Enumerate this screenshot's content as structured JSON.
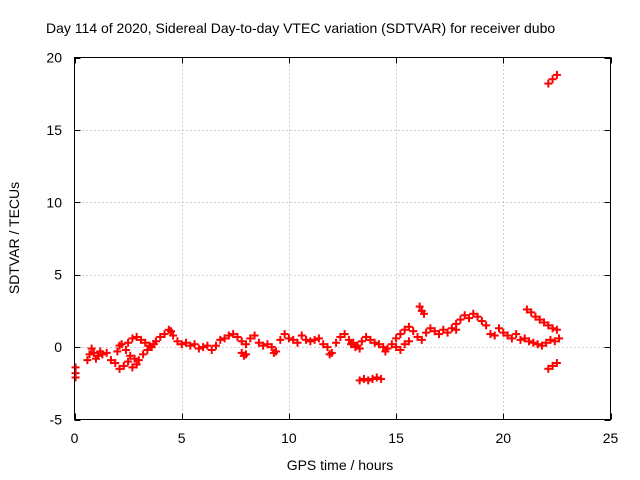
{
  "chart_data": {
    "type": "scatter",
    "title": "Day 114 of 2020, Sidereal Day-to-day VTEC variation (SDTVAR) for receiver dubo",
    "xlabel": "GPS time / hours",
    "ylabel": "SDTVAR / TECUs",
    "xlim": [
      0,
      25
    ],
    "ylim": [
      -5,
      20
    ],
    "xticks": [
      0,
      5,
      10,
      15,
      20,
      25
    ],
    "yticks": [
      -5,
      0,
      5,
      10,
      15,
      20
    ],
    "x_tick_labels": [
      "0",
      "5",
      "10",
      "15",
      "20",
      "25"
    ],
    "y_tick_labels": [
      "-5",
      "0",
      "5",
      "10",
      "15",
      "20"
    ],
    "grid": true,
    "marker": "plus",
    "color": "#ff0000",
    "series": [
      {
        "name": "SDTVAR",
        "points": [
          [
            0.05,
            -1.4
          ],
          [
            0.05,
            -1.8
          ],
          [
            0.05,
            -2.1
          ],
          [
            0.6,
            -0.9
          ],
          [
            0.7,
            -0.5
          ],
          [
            0.8,
            -0.1
          ],
          [
            0.9,
            -0.4
          ],
          [
            1.0,
            -0.8
          ],
          [
            1.1,
            -0.6
          ],
          [
            1.2,
            -0.3
          ],
          [
            1.3,
            -0.5
          ],
          [
            1.5,
            -0.4
          ],
          [
            1.7,
            -0.9
          ],
          [
            1.9,
            -1.1
          ],
          [
            2.1,
            -1.5
          ],
          [
            2.3,
            -1.3
          ],
          [
            2.5,
            -1.0
          ],
          [
            2.7,
            -1.4
          ],
          [
            2.9,
            -1.2
          ],
          [
            2.0,
            -0.3
          ],
          [
            2.1,
            0.1
          ],
          [
            2.2,
            0.2
          ],
          [
            2.4,
            -0.2
          ],
          [
            2.6,
            -0.6
          ],
          [
            2.8,
            -0.8
          ],
          [
            3.0,
            -0.9
          ],
          [
            3.2,
            -0.5
          ],
          [
            2.5,
            0.3
          ],
          [
            2.7,
            0.6
          ],
          [
            2.9,
            0.7
          ],
          [
            3.1,
            0.5
          ],
          [
            3.3,
            0.3
          ],
          [
            3.5,
            0.1
          ],
          [
            3.7,
            0.2
          ],
          [
            3.4,
            -0.2
          ],
          [
            3.6,
            0.0
          ],
          [
            3.8,
            0.4
          ],
          [
            4.0,
            0.7
          ],
          [
            4.2,
            0.9
          ],
          [
            4.4,
            1.2
          ],
          [
            4.5,
            1.1
          ],
          [
            4.6,
            0.8
          ],
          [
            4.8,
            0.4
          ],
          [
            5.0,
            0.2
          ],
          [
            5.2,
            0.3
          ],
          [
            5.4,
            0.1
          ],
          [
            5.6,
            0.2
          ],
          [
            5.8,
            -0.1
          ],
          [
            6.0,
            0.0
          ],
          [
            6.2,
            0.1
          ],
          [
            6.4,
            -0.2
          ],
          [
            6.6,
            0.1
          ],
          [
            6.8,
            0.5
          ],
          [
            7.0,
            0.6
          ],
          [
            7.2,
            0.8
          ],
          [
            7.4,
            0.9
          ],
          [
            7.6,
            0.7
          ],
          [
            7.8,
            0.4
          ],
          [
            8.0,
            0.2
          ],
          [
            8.2,
            0.6
          ],
          [
            8.4,
            0.8
          ],
          [
            7.8,
            -0.4
          ],
          [
            7.9,
            -0.6
          ],
          [
            8.0,
            -0.5
          ],
          [
            8.6,
            0.3
          ],
          [
            8.8,
            0.1
          ],
          [
            9.0,
            0.2
          ],
          [
            9.2,
            0.0
          ],
          [
            9.3,
            -0.4
          ],
          [
            9.4,
            -0.3
          ],
          [
            9.6,
            0.5
          ],
          [
            9.8,
            0.9
          ],
          [
            10.0,
            0.6
          ],
          [
            10.2,
            0.5
          ],
          [
            10.4,
            0.3
          ],
          [
            10.6,
            0.8
          ],
          [
            10.8,
            0.5
          ],
          [
            11.0,
            0.4
          ],
          [
            11.2,
            0.5
          ],
          [
            11.4,
            0.6
          ],
          [
            11.6,
            0.2
          ],
          [
            11.8,
            0.0
          ],
          [
            11.9,
            -0.5
          ],
          [
            12.0,
            -0.4
          ],
          [
            12.2,
            0.3
          ],
          [
            12.4,
            0.7
          ],
          [
            12.6,
            0.9
          ],
          [
            12.8,
            0.5
          ],
          [
            13.0,
            0.3
          ],
          [
            13.2,
            0.1
          ],
          [
            13.4,
            0.4
          ],
          [
            13.6,
            0.7
          ],
          [
            13.8,
            0.5
          ],
          [
            14.0,
            0.3
          ],
          [
            14.2,
            0.2
          ],
          [
            14.4,
            0.0
          ],
          [
            14.5,
            -0.3
          ],
          [
            12.9,
            0.2
          ],
          [
            13.1,
            0.0
          ],
          [
            13.3,
            -0.1
          ],
          [
            13.3,
            -2.3
          ],
          [
            13.5,
            -2.2
          ],
          [
            13.7,
            -2.3
          ],
          [
            13.9,
            -2.2
          ],
          [
            14.1,
            -2.1
          ],
          [
            14.3,
            -2.2
          ],
          [
            14.6,
            -0.1
          ],
          [
            14.8,
            0.2
          ],
          [
            15.0,
            0.6
          ],
          [
            15.2,
            0.9
          ],
          [
            15.4,
            1.2
          ],
          [
            15.6,
            1.4
          ],
          [
            15.8,
            1.1
          ],
          [
            16.0,
            0.7
          ],
          [
            16.2,
            0.5
          ],
          [
            15.0,
            0.0
          ],
          [
            15.2,
            -0.2
          ],
          [
            15.4,
            0.2
          ],
          [
            15.6,
            0.4
          ],
          [
            16.1,
            2.8
          ],
          [
            16.2,
            2.5
          ],
          [
            16.3,
            2.3
          ],
          [
            16.4,
            1.0
          ],
          [
            16.6,
            1.3
          ],
          [
            16.8,
            1.1
          ],
          [
            17.0,
            0.9
          ],
          [
            17.2,
            1.2
          ],
          [
            17.4,
            1.0
          ],
          [
            17.6,
            1.3
          ],
          [
            17.8,
            1.2
          ],
          [
            17.8,
            1.6
          ],
          [
            18.0,
            1.9
          ],
          [
            18.2,
            2.2
          ],
          [
            18.4,
            2.0
          ],
          [
            18.6,
            2.3
          ],
          [
            18.8,
            2.1
          ],
          [
            19.0,
            1.8
          ],
          [
            19.2,
            1.5
          ],
          [
            19.4,
            0.9
          ],
          [
            19.6,
            0.8
          ],
          [
            19.8,
            1.3
          ],
          [
            20.0,
            1.0
          ],
          [
            20.2,
            0.8
          ],
          [
            20.4,
            0.6
          ],
          [
            20.6,
            0.9
          ],
          [
            20.8,
            0.5
          ],
          [
            21.0,
            0.6
          ],
          [
            21.2,
            0.4
          ],
          [
            21.4,
            0.3
          ],
          [
            21.6,
            0.2
          ],
          [
            21.8,
            0.1
          ],
          [
            22.0,
            0.3
          ],
          [
            22.2,
            0.5
          ],
          [
            22.4,
            0.4
          ],
          [
            22.6,
            0.6
          ],
          [
            21.1,
            2.6
          ],
          [
            21.3,
            2.4
          ],
          [
            21.5,
            2.1
          ],
          [
            21.7,
            1.9
          ],
          [
            21.9,
            1.7
          ],
          [
            22.1,
            1.5
          ],
          [
            22.3,
            1.3
          ],
          [
            22.5,
            1.2
          ],
          [
            22.1,
            -1.5
          ],
          [
            22.3,
            -1.3
          ],
          [
            22.5,
            -1.1
          ],
          [
            22.1,
            18.2
          ],
          [
            22.3,
            18.5
          ],
          [
            22.5,
            18.8
          ]
        ]
      }
    ]
  }
}
